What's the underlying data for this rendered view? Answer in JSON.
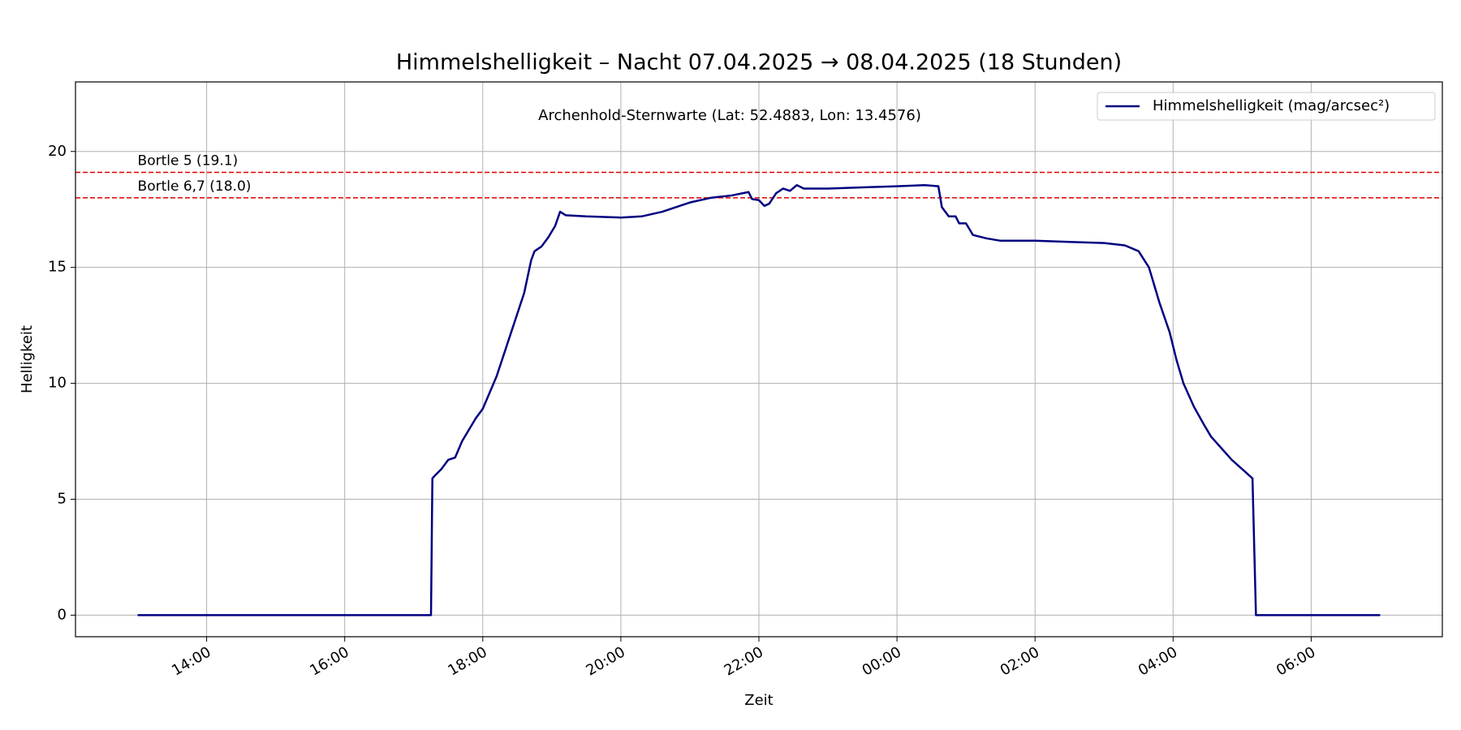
{
  "chart_data": {
    "type": "line",
    "title": "Himmelshelligkeit – Nacht 07.04.2025 → 08.04.2025 (18 Stunden)",
    "annotation": "Archenhold-Sternwarte (Lat: 52.4883, Lon: 13.4576)",
    "xlabel": "Zeit",
    "ylabel": "Helligkeit",
    "xlim": [
      12.1,
      31.9
    ],
    "ylim": [
      -0.93,
      23.0
    ],
    "xticks": [
      {
        "value": 14,
        "label": "14:00"
      },
      {
        "value": 16,
        "label": "16:00"
      },
      {
        "value": 18,
        "label": "18:00"
      },
      {
        "value": 20,
        "label": "20:00"
      },
      {
        "value": 22,
        "label": "22:00"
      },
      {
        "value": 24,
        "label": "00:00"
      },
      {
        "value": 26,
        "label": "02:00"
      },
      {
        "value": 28,
        "label": "04:00"
      },
      {
        "value": 30,
        "label": "06:00"
      }
    ],
    "yticks": [
      0,
      5,
      10,
      15,
      20
    ],
    "grid": true,
    "legend": "upper right",
    "reference_lines": [
      {
        "value": 19.1,
        "label": "Bortle 5 (19.1)",
        "color": "#dd0000"
      },
      {
        "value": 18.0,
        "label": "Bortle 6,7 (18.0)",
        "color": "#dd0000"
      }
    ],
    "x": [
      13.0,
      15.0,
      17.0,
      17.25,
      17.27,
      17.3,
      17.4,
      17.5,
      17.6,
      17.7,
      17.8,
      17.9,
      18.0,
      18.2,
      18.4,
      18.6,
      18.7,
      18.75,
      18.85,
      18.95,
      19.05,
      19.12,
      19.2,
      19.5,
      20.0,
      20.3,
      20.6,
      21.0,
      21.3,
      21.6,
      21.85,
      21.9,
      22.0,
      22.08,
      22.15,
      22.25,
      22.35,
      22.45,
      22.55,
      22.65,
      23.0,
      23.5,
      24.0,
      24.4,
      24.6,
      24.65,
      24.75,
      24.85,
      24.9,
      25.0,
      25.1,
      25.3,
      25.5,
      26.0,
      26.5,
      27.0,
      27.3,
      27.5,
      27.65,
      27.8,
      27.95,
      28.05,
      28.15,
      28.3,
      28.45,
      28.55,
      28.7,
      28.85,
      29.0,
      29.15,
      29.2,
      30.0,
      31.0
    ],
    "series": [
      {
        "name": "Himmelshelligkeit (mag/arcsec²)",
        "color": "#000080",
        "values": [
          0,
          0,
          0,
          0,
          5.9,
          6.0,
          6.3,
          6.7,
          6.8,
          7.5,
          8.0,
          8.5,
          8.9,
          10.3,
          12.1,
          13.9,
          15.3,
          15.7,
          15.9,
          16.3,
          16.8,
          17.4,
          17.25,
          17.2,
          17.15,
          17.2,
          17.4,
          17.8,
          18.0,
          18.1,
          18.25,
          17.95,
          17.9,
          17.65,
          17.75,
          18.2,
          18.4,
          18.3,
          18.55,
          18.4,
          18.4,
          18.45,
          18.5,
          18.55,
          18.5,
          17.6,
          17.2,
          17.2,
          16.9,
          16.9,
          16.4,
          16.25,
          16.15,
          16.15,
          16.1,
          16.05,
          15.95,
          15.7,
          15.0,
          13.5,
          12.2,
          11.0,
          10.0,
          9.0,
          8.2,
          7.7,
          7.2,
          6.7,
          6.3,
          5.9,
          0,
          0,
          0
        ]
      }
    ]
  }
}
